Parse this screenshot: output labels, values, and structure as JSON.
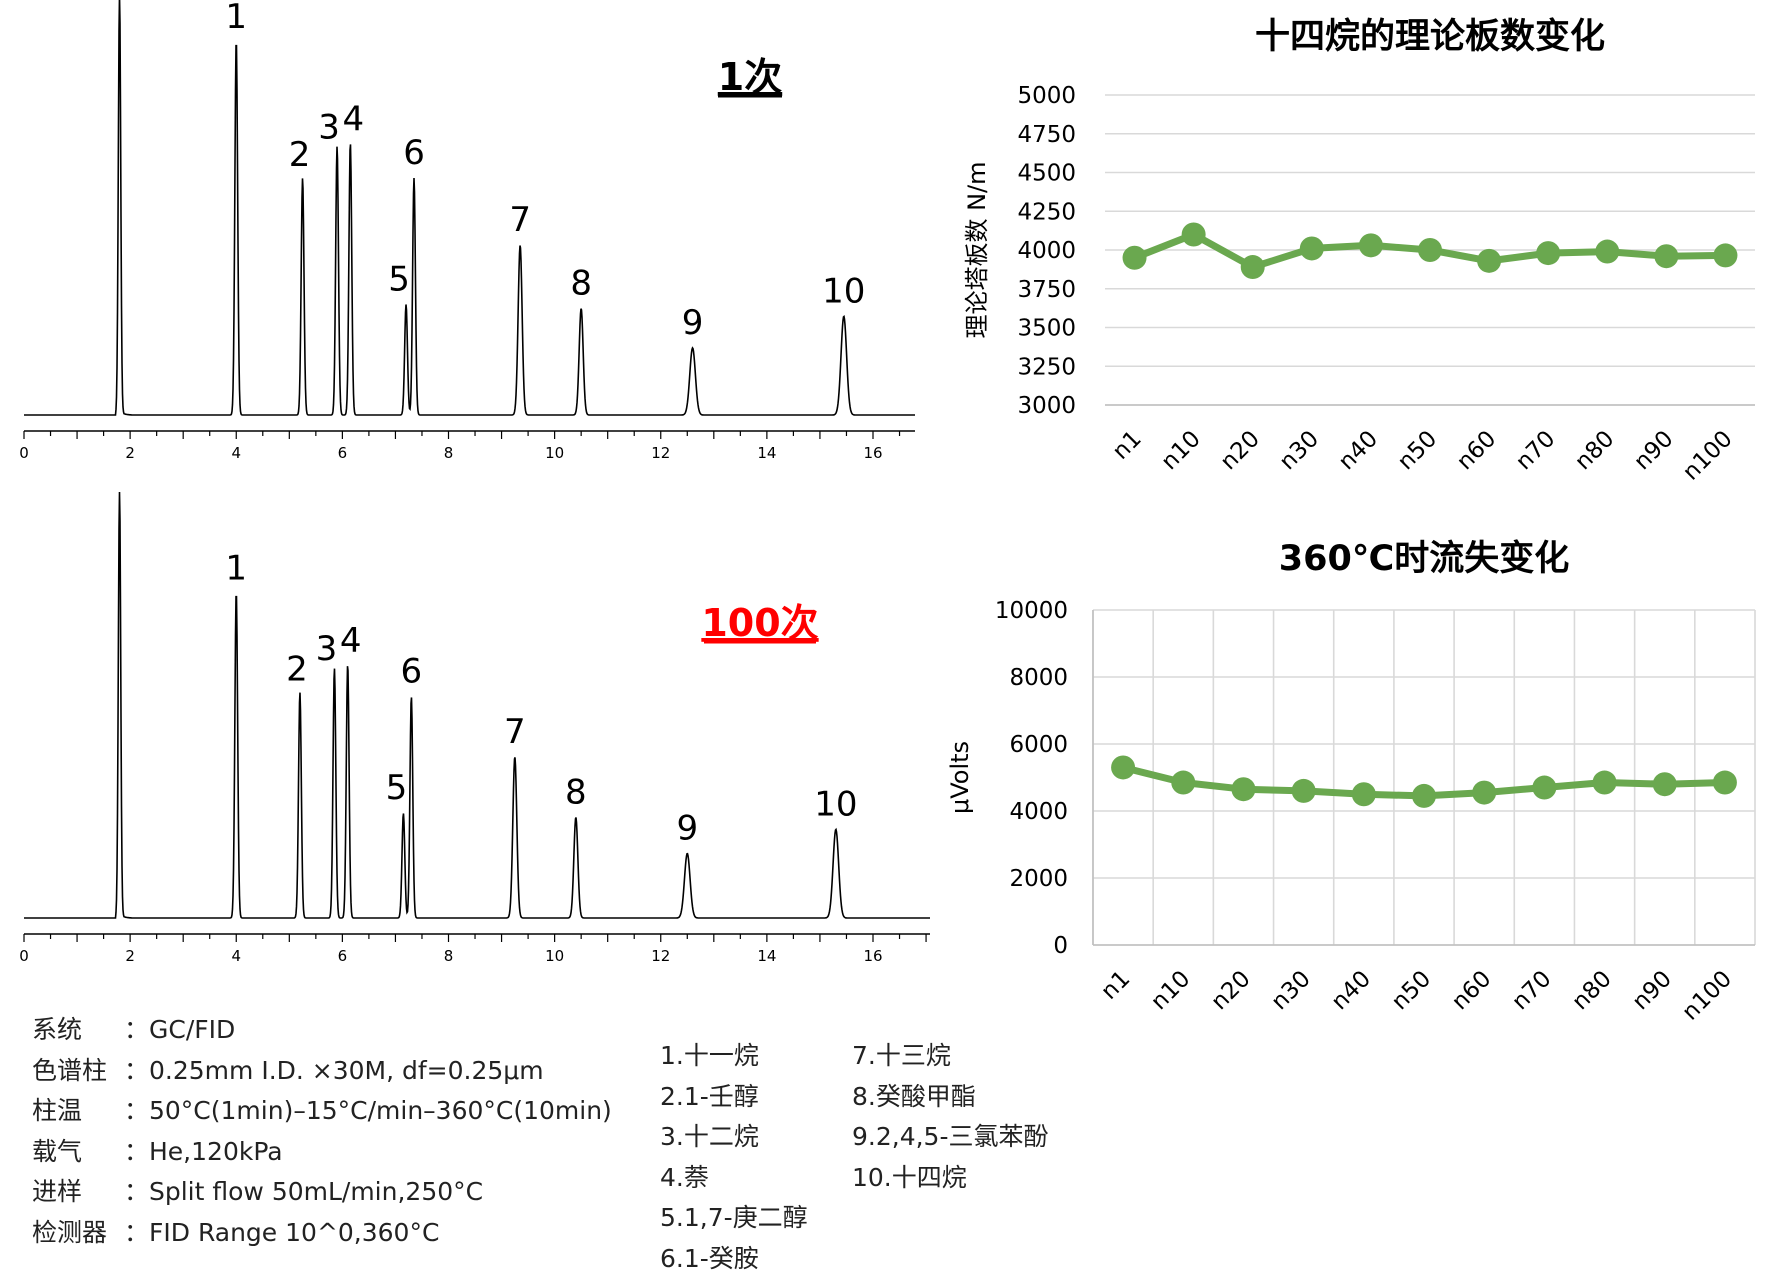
{
  "chromatograms": [
    {
      "run_label": "1次",
      "run_label_color": "#000000",
      "x_ticks": [
        "0",
        "2",
        "4",
        "6",
        "8",
        "10",
        "12",
        "14",
        "16"
      ],
      "peaks": [
        {
          "label": "1",
          "rt": 4.0,
          "height": 0.95
        },
        {
          "label": "2",
          "rt": 5.25,
          "height": 0.6
        },
        {
          "label": "3",
          "rt": 5.9,
          "height": 0.68
        },
        {
          "label": "4",
          "rt": 6.15,
          "height": 0.69
        },
        {
          "label": "5",
          "rt": 7.2,
          "height": 0.28
        },
        {
          "label": "6",
          "rt": 7.35,
          "height": 0.6
        },
        {
          "label": "7",
          "rt": 9.35,
          "height": 0.43
        },
        {
          "label": "8",
          "rt": 10.5,
          "height": 0.27
        },
        {
          "label": "9",
          "rt": 12.6,
          "height": 0.17
        },
        {
          "label": "10",
          "rt": 15.45,
          "height": 0.25
        }
      ]
    },
    {
      "run_label": "100次",
      "run_label_color": "#ff0000",
      "x_ticks": [
        "0",
        "2",
        "4",
        "6",
        "8",
        "10",
        "12",
        "14",
        "16"
      ],
      "peaks": [
        {
          "label": "1",
          "rt": 4.0,
          "height": 0.81
        },
        {
          "label": "2",
          "rt": 5.2,
          "height": 0.56
        },
        {
          "label": "3",
          "rt": 5.85,
          "height": 0.62
        },
        {
          "label": "4",
          "rt": 6.1,
          "height": 0.63
        },
        {
          "label": "5",
          "rt": 7.15,
          "height": 0.26
        },
        {
          "label": "6",
          "rt": 7.3,
          "height": 0.55
        },
        {
          "label": "7",
          "rt": 9.25,
          "height": 0.4
        },
        {
          "label": "8",
          "rt": 10.4,
          "height": 0.25
        },
        {
          "label": "9",
          "rt": 12.5,
          "height": 0.16
        },
        {
          "label": "10",
          "rt": 15.3,
          "height": 0.22
        }
      ]
    }
  ],
  "chart_data": [
    {
      "type": "line",
      "title": "十四烷的理论板数变化",
      "ylabel": "理论塔板数 N/m",
      "xlabel": "",
      "categories": [
        "n1",
        "n10",
        "n20",
        "n30",
        "n40",
        "n50",
        "n60",
        "n70",
        "n80",
        "n90",
        "n100"
      ],
      "values": [
        3950,
        4100,
        3890,
        4010,
        4030,
        4000,
        3930,
        3980,
        3990,
        3960,
        3965
      ],
      "ylim": [
        3000,
        5000
      ],
      "yticks": [
        "3000",
        "3250",
        "3500",
        "3750",
        "4000",
        "4250",
        "4500",
        "4750",
        "5000"
      ],
      "color": "#6aa84f",
      "grid": "horizontal"
    },
    {
      "type": "line",
      "title": "360℃时流失变化",
      "ylabel": "μVolts",
      "xlabel": "",
      "categories": [
        "n1",
        "n10",
        "n20",
        "n30",
        "n40",
        "n50",
        "n60",
        "n70",
        "n80",
        "n90",
        "n100"
      ],
      "values": [
        5300,
        4850,
        4650,
        4600,
        4500,
        4450,
        4550,
        4700,
        4850,
        4800,
        4850
      ],
      "ylim": [
        0,
        10000
      ],
      "yticks": [
        "0",
        "2000",
        "4000",
        "6000",
        "8000",
        "10000"
      ],
      "color": "#6aa84f",
      "grid": "both"
    }
  ],
  "conditions": [
    {
      "label": "系统",
      "value": "：GC/FID"
    },
    {
      "label": "色谱柱",
      "value": "：0.25mm I.D. ×30M, df=0.25μm"
    },
    {
      "label": "柱温",
      "value": "：50°C(1min)–15°C/min–360°C(10min)"
    },
    {
      "label": "载气",
      "value": "：He,120kPa"
    },
    {
      "label": "进样",
      "value": "：Split flow 50mL/min,250°C"
    },
    {
      "label": "检测器",
      "value": "：FID Range 10^0,360°C"
    }
  ],
  "compounds_col1": [
    "1.十一烷",
    "2.1-壬醇",
    "3.十二烷",
    "4.萘",
    "5.1,7-庚二醇",
    "6.1-癸胺"
  ],
  "compounds_col2": [
    "7.十三烷",
    "8.癸酸甲酯",
    "9.2,4,5-三氯苯酚",
    "10.十四烷"
  ]
}
